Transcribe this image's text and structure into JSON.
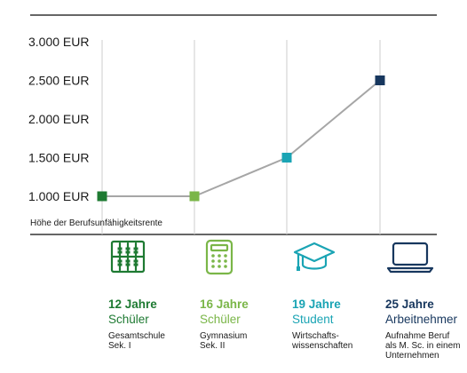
{
  "colors": {
    "line": "#a6a6a6",
    "rule": "#333333",
    "grid": "#cccccc",
    "text": "#1a1a1a",
    "stage1": "#1e7a32",
    "stage2": "#7ab648",
    "stage3": "#1aa4b4",
    "stage4": "#17375e"
  },
  "chart_data": {
    "type": "line",
    "categories": [
      "12 Jahre",
      "16 Jahre",
      "19 Jahre",
      "25 Jahre"
    ],
    "values": [
      1000,
      1000,
      1500,
      2500
    ],
    "point_colors": [
      "#1e7a32",
      "#7ab648",
      "#1aa4b4",
      "#17375e"
    ],
    "yticks": [
      {
        "value": 1000,
        "label": "1.000 EUR"
      },
      {
        "value": 1500,
        "label": "1.500 EUR"
      },
      {
        "value": 2000,
        "label": "2.000 EUR"
      },
      {
        "value": 2500,
        "label": "2.500 EUR"
      },
      {
        "value": 3000,
        "label": "3.000 EUR"
      }
    ],
    "ylim": [
      1000,
      3000
    ],
    "ylabel": "Höhe der Berufsunfähigkeitsrente",
    "grid": "vertical"
  },
  "stages": [
    {
      "icon": "abacus-icon",
      "years": "12 Jahre",
      "role": "Schüler",
      "desc": "Gesamtschule\nSek. I",
      "color": "#1e7a32"
    },
    {
      "icon": "calculator-icon",
      "years": "16 Jahre",
      "role": "Schüler",
      "desc": "Gymnasium\nSek. II",
      "color": "#7ab648"
    },
    {
      "icon": "graduation-cap-icon",
      "years": "19 Jahre",
      "role": "Student",
      "desc": "Wirtschafts-\nwissenschaften",
      "color": "#1aa4b4"
    },
    {
      "icon": "laptop-icon",
      "years": "25 Jahre",
      "role": "Arbeitnehmer",
      "desc": "Aufnahme Beruf\nals M. Sc. in einem\nUnternehmen",
      "color": "#17375e"
    }
  ]
}
